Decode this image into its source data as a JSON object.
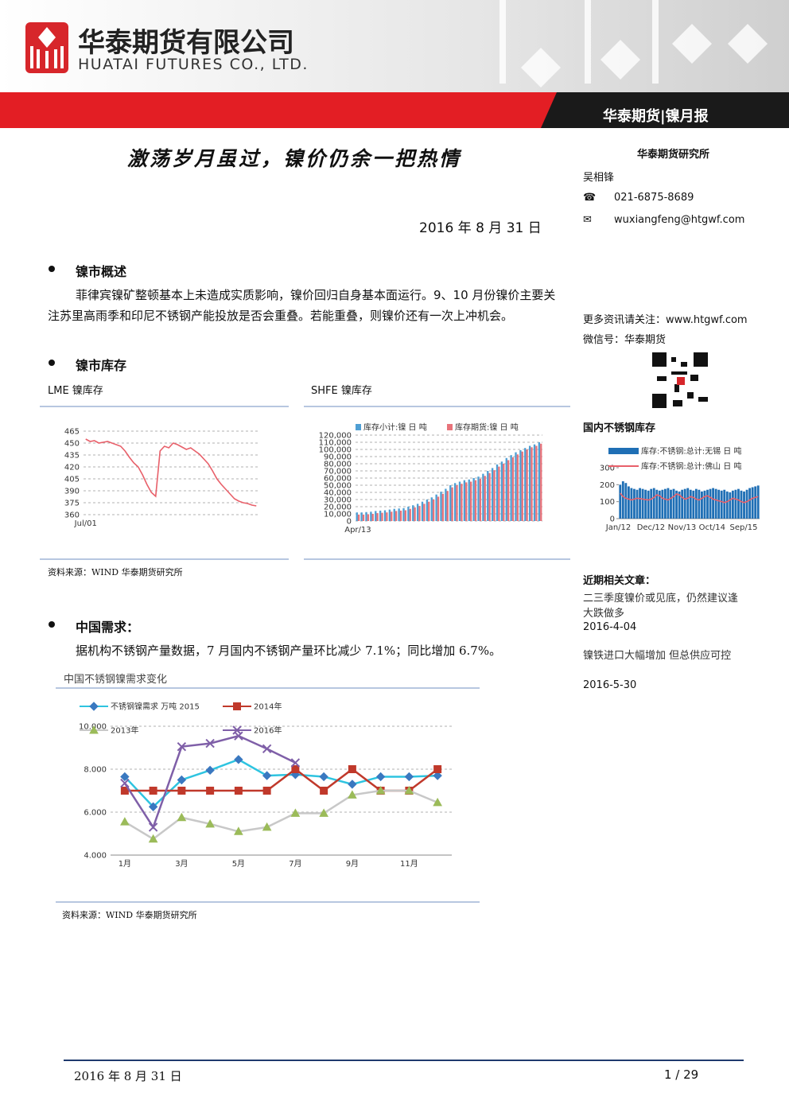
{
  "header": {
    "company_cn": "华泰期货有限公司",
    "company_en": "HUATAI FUTURES CO., LTD.",
    "report_tag": "华泰期货|镍月报"
  },
  "title": "激荡岁月虽过，镍价仍余一把热情",
  "date": "2016 年 8 月 31 日",
  "sidebar": {
    "institute": "华泰期货研究所",
    "analyst": "吴相锋",
    "phone": "021-6875-8689",
    "email": "wuxiangfeng@htgwf.com",
    "more": "更多资讯请关注：www.htgwf.com",
    "wechat": "微信号：华泰期货",
    "stock_title": "国内不锈钢库存",
    "related_title": "近期相关文章：",
    "articles": [
      {
        "title": "二三季度镍价或见底，仍然建议逢大跌做多",
        "date": "2016-4-04"
      },
      {
        "title": "镍铁进口大幅增加 但总供应可控",
        "date": "2016-5-30"
      }
    ]
  },
  "sections": [
    {
      "heading": "镍市概述",
      "text": "菲律宾镍矿整顿基本上未造成实质影响，镍价回归自身基本面运行。9、10 月份镍价主要关注苏里高雨季和印尼不锈钢产能投放是否会重叠。若能重叠，则镍价还有一次上冲机会。"
    },
    {
      "heading": "镍市库存"
    },
    {
      "heading": "中国需求：",
      "text": "据机构不锈钢产量数据，7 月国内不锈钢产量环比减少 7.1%；同比增加 6.7%。"
    }
  ],
  "sources": [
    "资料来源：WIND 华泰期货研究所",
    "资料来源：WIND 华泰期货研究所"
  ],
  "footer": {
    "date": "2016 年 8 月 31 日",
    "page": "1 / 29"
  },
  "charts": [
    {
      "type": "line",
      "title": "LME 镍库存",
      "categories": [
        "Jul/01",
        null,
        null,
        null,
        null,
        null,
        null,
        null,
        null,
        null,
        null,
        null,
        null,
        null,
        null,
        null,
        null,
        null,
        null,
        null,
        null,
        null,
        null,
        null,
        null,
        null,
        null,
        null,
        null,
        null,
        null,
        null,
        null,
        null,
        null,
        null,
        null,
        null,
        null,
        null
      ],
      "series": [
        {
          "name": "LME",
          "color": "#e8606a",
          "values": [
            455,
            452,
            453,
            450,
            451,
            452,
            450,
            448,
            446,
            440,
            432,
            425,
            420,
            410,
            398,
            388,
            383,
            440,
            446,
            444,
            450,
            448,
            445,
            442,
            444,
            440,
            436,
            430,
            424,
            415,
            405,
            398,
            392,
            386,
            380,
            377,
            375,
            374,
            372,
            371
          ]
        }
      ],
      "ylim": [
        360,
        465
      ],
      "yticks": [
        360,
        375,
        390,
        405,
        420,
        435,
        450,
        465
      ],
      "grid": true
    },
    {
      "type": "bar",
      "title": "SHFE 镍库存",
      "categories": [
        "Apr/13",
        null,
        null,
        null,
        null,
        null,
        null,
        null,
        null,
        null,
        null,
        null,
        null,
        null,
        null,
        null,
        null,
        null,
        null,
        null,
        null,
        null,
        null,
        null,
        null,
        null,
        null,
        null,
        null,
        null,
        null,
        null,
        null,
        null,
        null,
        null,
        null,
        null,
        null,
        null
      ],
      "series": [
        {
          "name": "库存小计:镍 日 吨",
          "color": "#4f9fd4",
          "values": [
            12000,
            12000,
            12500,
            13000,
            14000,
            14500,
            15000,
            16000,
            17000,
            17500,
            18000,
            20000,
            22000,
            24000,
            27000,
            30000,
            33000,
            37000,
            41000,
            45000,
            50000,
            53000,
            55000,
            57000,
            58000,
            60000,
            62000,
            66000,
            70000,
            74000,
            79000,
            83000,
            88000,
            92000,
            96000,
            99000,
            102000,
            105000,
            107000,
            110000
          ]
        },
        {
          "name": "库存期货:镍 日 吨",
          "color": "#e8737a",
          "values": [
            9000,
            9000,
            9500,
            10000,
            11000,
            11500,
            12000,
            13000,
            14000,
            14500,
            15000,
            17000,
            19000,
            21000,
            24000,
            27000,
            30000,
            34000,
            38000,
            42000,
            47000,
            50000,
            52000,
            54000,
            55000,
            57000,
            59000,
            63000,
            67000,
            71000,
            76000,
            80000,
            85000,
            89000,
            93000,
            97000,
            100000,
            103000,
            105000,
            108000
          ]
        }
      ],
      "ylim": [
        0,
        120000
      ],
      "yticks": [
        0,
        {
          "value": 10000,
          "label": "10,000"
        },
        {
          "value": 20000,
          "label": "20,000"
        },
        {
          "value": 30000,
          "label": "30,000"
        },
        {
          "value": 40000,
          "label": "40,000"
        },
        {
          "value": 50000,
          "label": "50,000"
        },
        {
          "value": 60000,
          "label": "60,000"
        },
        {
          "value": 70000,
          "label": "70,000"
        },
        {
          "value": 80000,
          "label": "80,000"
        },
        {
          "value": 90000,
          "label": "90,000"
        },
        {
          "value": 100000,
          "label": "100,000"
        },
        {
          "value": 110000,
          "label": "110,000"
        },
        {
          "value": 120000,
          "label": "120,000"
        }
      ],
      "grid": true
    },
    {
      "type": "bar",
      "categories": [
        "Jan/12",
        null,
        null,
        null,
        null,
        null,
        null,
        null,
        null,
        null,
        null,
        "Dec/12",
        null,
        null,
        null,
        null,
        null,
        null,
        null,
        null,
        null,
        null,
        "Nov/13",
        null,
        null,
        null,
        null,
        null,
        null,
        null,
        null,
        null,
        null,
        "Oct/14",
        null,
        null,
        null,
        null,
        null,
        null,
        null,
        null,
        null,
        null,
        "Sep/15",
        null,
        null,
        null,
        null,
        null
      ],
      "series": [
        {
          "name": "库存:不锈钢:总计:无锡 日 吨",
          "color": "#1f6fb5",
          "values": [
            200,
            220,
            210,
            190,
            180,
            175,
            170,
            180,
            175,
            170,
            165,
            175,
            180,
            170,
            165,
            170,
            175,
            180,
            170,
            175,
            165,
            160,
            170,
            175,
            180,
            170,
            165,
            175,
            170,
            160,
            165,
            170,
            175,
            180,
            175,
            170,
            165,
            170,
            160,
            155,
            165,
            170,
            175,
            165,
            160,
            170,
            180,
            185,
            190,
            195
          ]
        },
        {
          "name": "库存:不锈钢:总计:佛山 日 吨",
          "color": "#e8606a",
          "type": "line",
          "values": [
            150,
            130,
            120,
            115,
            110,
            115,
            120,
            118,
            115,
            112,
            110,
            115,
            125,
            140,
            135,
            120,
            115,
            110,
            120,
            130,
            145,
            140,
            125,
            115,
            120,
            130,
            125,
            115,
            110,
            120,
            130,
            135,
            125,
            115,
            110,
            105,
            100,
            95,
            100,
            110,
            120,
            115,
            110,
            100,
            95,
            100,
            110,
            120,
            125,
            130
          ]
        }
      ],
      "ylim": [
        0,
        300
      ],
      "yticks": [
        0,
        100,
        200,
        300
      ],
      "grid": false
    },
    {
      "type": "line",
      "title": "中国不锈钢镍需求变化",
      "categories": [
        "1月",
        null,
        "3月",
        null,
        "5月",
        null,
        "7月",
        null,
        "9月",
        null,
        "11月",
        null
      ],
      "series": [
        {
          "name": "不锈钢镍需求 万吨 2015",
          "color": "#2ec4e0",
          "marker_color": "#3a78c0",
          "marker": "diamond",
          "values": [
            7.65,
            6.25,
            7.5,
            7.95,
            8.45,
            7.7,
            7.75,
            7.65,
            7.3,
            7.65,
            7.65,
            7.7
          ]
        },
        {
          "name": "2014年",
          "color": "#c0392b",
          "marker": "square",
          "values": [
            7.0,
            7.0,
            7.0,
            7.0,
            7.0,
            7.0,
            8.0,
            7.0,
            8.0,
            7.0,
            7.0,
            8.0
          ]
        },
        {
          "name": "2013年",
          "color": "#c8c8c8",
          "marker_color": "#9bbb59",
          "marker": "triangle",
          "values": [
            5.55,
            4.75,
            5.75,
            5.45,
            5.1,
            5.3,
            5.95,
            5.95,
            6.8,
            7.0,
            7.0,
            6.45
          ]
        },
        {
          "name": "2016年",
          "color": "#7f5fa8",
          "marker": "x",
          "values": [
            7.35,
            5.3,
            9.05,
            9.2,
            9.55,
            8.95,
            8.3,
            null,
            null,
            null,
            null,
            null
          ]
        }
      ],
      "ylim": [
        4,
        10
      ],
      "yticks": [
        {
          "value": 4,
          "label": "4.000"
        },
        {
          "value": 6,
          "label": "6.000"
        },
        {
          "value": 8,
          "label": "8.000"
        },
        {
          "value": 10,
          "label": "10.000"
        }
      ],
      "grid": true
    }
  ]
}
